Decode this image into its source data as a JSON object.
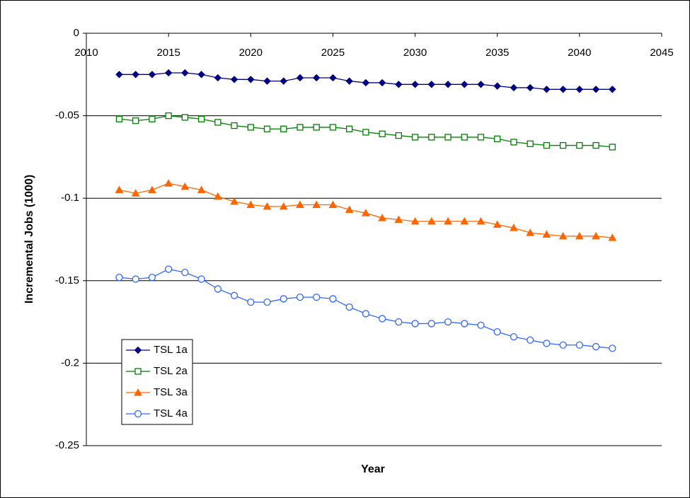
{
  "chart_data": {
    "type": "line",
    "x_label": "Year",
    "y_label": "Incremental Jobs (1000)",
    "x": [
      2012,
      2013,
      2014,
      2015,
      2016,
      2017,
      2018,
      2019,
      2020,
      2021,
      2022,
      2023,
      2024,
      2025,
      2026,
      2027,
      2028,
      2029,
      2030,
      2031,
      2032,
      2033,
      2034,
      2035,
      2036,
      2037,
      2038,
      2039,
      2040,
      2041,
      2042
    ],
    "series": [
      {
        "name": "TSL 1a",
        "color": "#000080",
        "marker": "diamond",
        "values": [
          -0.025,
          -0.025,
          -0.025,
          -0.024,
          -0.024,
          -0.025,
          -0.027,
          -0.028,
          -0.028,
          -0.029,
          -0.029,
          -0.027,
          -0.027,
          -0.027,
          -0.029,
          -0.03,
          -0.03,
          -0.031,
          -0.031,
          -0.031,
          -0.031,
          -0.031,
          -0.031,
          -0.032,
          -0.033,
          -0.033,
          -0.034,
          -0.034,
          -0.034,
          -0.034,
          -0.034
        ]
      },
      {
        "name": "TSL 2a",
        "color": "#008000",
        "marker": "square-open",
        "values": [
          -0.052,
          -0.053,
          -0.052,
          -0.05,
          -0.051,
          -0.052,
          -0.054,
          -0.056,
          -0.057,
          -0.058,
          -0.058,
          -0.057,
          -0.057,
          -0.057,
          -0.058,
          -0.06,
          -0.061,
          -0.062,
          -0.063,
          -0.063,
          -0.063,
          -0.063,
          -0.063,
          -0.064,
          -0.066,
          -0.067,
          -0.068,
          -0.068,
          -0.068,
          -0.068,
          -0.069
        ]
      },
      {
        "name": "TSL 3a",
        "color": "#ff6600",
        "marker": "triangle",
        "values": [
          -0.095,
          -0.097,
          -0.095,
          -0.091,
          -0.093,
          -0.095,
          -0.099,
          -0.102,
          -0.104,
          -0.105,
          -0.105,
          -0.104,
          -0.104,
          -0.104,
          -0.107,
          -0.109,
          -0.112,
          -0.113,
          -0.114,
          -0.114,
          -0.114,
          -0.114,
          -0.114,
          -0.116,
          -0.118,
          -0.121,
          -0.122,
          -0.123,
          -0.123,
          -0.123,
          -0.124
        ]
      },
      {
        "name": "TSL 4a",
        "color": "#3366ff",
        "marker": "circle-open",
        "values": [
          -0.148,
          -0.149,
          -0.148,
          -0.143,
          -0.145,
          -0.149,
          -0.155,
          -0.159,
          -0.163,
          -0.163,
          -0.161,
          -0.16,
          -0.16,
          -0.161,
          -0.166,
          -0.17,
          -0.173,
          -0.175,
          -0.176,
          -0.176,
          -0.175,
          -0.176,
          -0.177,
          -0.181,
          -0.184,
          -0.186,
          -0.188,
          -0.189,
          -0.189,
          -0.19,
          -0.191
        ]
      }
    ],
    "xlim": [
      2010,
      2045
    ],
    "xticks": [
      2010,
      2015,
      2020,
      2025,
      2030,
      2035,
      2040,
      2045
    ],
    "ylim": [
      -0.25,
      0
    ],
    "yticks": [
      0,
      -0.05,
      -0.1,
      -0.15,
      -0.2,
      -0.25
    ],
    "grid": true,
    "legend": "lower left"
  }
}
